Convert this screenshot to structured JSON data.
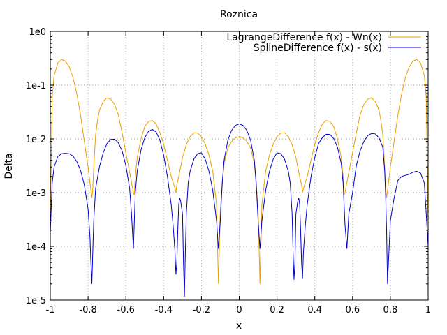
{
  "chart_data": {
    "type": "line",
    "title": "Roznica",
    "xlabel": "x",
    "ylabel": "Delta",
    "xlim": [
      -1,
      1
    ],
    "ylim": [
      1e-05,
      1
    ],
    "yscale": "log",
    "grid": true,
    "legend_position": "top-right",
    "x_ticks": [
      -1,
      -0.8,
      -0.6,
      -0.4,
      -0.2,
      0,
      0.2,
      0.4,
      0.6,
      0.8,
      1
    ],
    "x_tick_labels": [
      "-1",
      "-0.8",
      "-0.6",
      "-0.4",
      "-0.2",
      "0",
      "0.2",
      "0.4",
      "0.6",
      "0.8",
      "1"
    ],
    "y_ticks": [
      1e-05,
      0.0001,
      0.001,
      0.01,
      0.1,
      1
    ],
    "y_tick_labels": [
      "1e-5",
      "1e-4",
      "1e-3",
      "1e-2",
      "1e-1",
      "1e0"
    ],
    "series": [
      {
        "name": "LagrangeDifference f(x) - Wn(x)",
        "color": "#e8a000",
        "x": [
          -1.0,
          -0.99,
          -0.98,
          -0.96,
          -0.94,
          -0.92,
          -0.9,
          -0.88,
          -0.86,
          -0.84,
          -0.82,
          -0.8,
          -0.79,
          -0.78,
          -0.775,
          -0.77,
          -0.76,
          -0.75,
          -0.74,
          -0.72,
          -0.7,
          -0.68,
          -0.66,
          -0.64,
          -0.62,
          -0.6,
          -0.58,
          -0.56,
          -0.555,
          -0.55,
          -0.54,
          -0.52,
          -0.5,
          -0.48,
          -0.46,
          -0.44,
          -0.42,
          -0.4,
          -0.38,
          -0.36,
          -0.34,
          -0.335,
          -0.33,
          -0.32,
          -0.3,
          -0.28,
          -0.26,
          -0.24,
          -0.22,
          -0.2,
          -0.18,
          -0.16,
          -0.14,
          -0.12,
          -0.11,
          -0.1,
          -0.08,
          -0.06,
          -0.04,
          -0.02,
          0.0,
          0.02,
          0.04,
          0.06,
          0.08,
          0.1,
          0.11,
          0.12,
          0.14,
          0.16,
          0.18,
          0.2,
          0.22,
          0.24,
          0.26,
          0.28,
          0.3,
          0.32,
          0.33,
          0.335,
          0.34,
          0.36,
          0.38,
          0.4,
          0.42,
          0.44,
          0.46,
          0.48,
          0.5,
          0.52,
          0.54,
          0.55,
          0.555,
          0.56,
          0.58,
          0.6,
          0.62,
          0.64,
          0.66,
          0.68,
          0.7,
          0.72,
          0.74,
          0.75,
          0.76,
          0.77,
          0.775,
          0.78,
          0.79,
          0.8,
          0.82,
          0.84,
          0.86,
          0.88,
          0.9,
          0.92,
          0.94,
          0.96,
          0.98,
          0.99,
          1.0
        ],
        "values": [
          0.00025,
          0.06,
          0.15,
          0.26,
          0.3,
          0.28,
          0.22,
          0.14,
          0.07,
          0.028,
          0.009,
          0.003,
          0.0015,
          0.0008,
          0.0012,
          0.003,
          0.012,
          0.022,
          0.034,
          0.05,
          0.058,
          0.055,
          0.044,
          0.028,
          0.013,
          0.0055,
          0.0024,
          0.001,
          0.0009,
          0.002,
          0.0045,
          0.01,
          0.017,
          0.021,
          0.022,
          0.019,
          0.013,
          0.008,
          0.004,
          0.002,
          0.0012,
          0.001,
          0.0014,
          0.002,
          0.0045,
          0.0078,
          0.011,
          0.013,
          0.0128,
          0.011,
          0.008,
          0.005,
          0.0025,
          0.0006,
          2e-05,
          0.0005,
          0.0035,
          0.0068,
          0.009,
          0.0105,
          0.011,
          0.0105,
          0.009,
          0.0068,
          0.0035,
          0.0005,
          2e-05,
          0.0006,
          0.0025,
          0.005,
          0.008,
          0.011,
          0.0128,
          0.013,
          0.011,
          0.0078,
          0.0045,
          0.002,
          0.0014,
          0.001,
          0.0012,
          0.002,
          0.004,
          0.008,
          0.013,
          0.019,
          0.022,
          0.021,
          0.017,
          0.01,
          0.0045,
          0.002,
          0.0009,
          0.001,
          0.0024,
          0.0055,
          0.013,
          0.028,
          0.044,
          0.055,
          0.058,
          0.05,
          0.034,
          0.022,
          0.012,
          0.003,
          0.0012,
          0.0008,
          0.0015,
          0.003,
          0.009,
          0.028,
          0.07,
          0.14,
          0.22,
          0.28,
          0.3,
          0.26,
          0.15,
          0.06,
          0.00025
        ]
      },
      {
        "name": "SplineDifference f(x) - s(x)",
        "color": "#0000cc",
        "x": [
          -1.0,
          -0.99,
          -0.98,
          -0.96,
          -0.94,
          -0.92,
          -0.9,
          -0.88,
          -0.86,
          -0.84,
          -0.82,
          -0.8,
          -0.79,
          -0.785,
          -0.78,
          -0.775,
          -0.77,
          -0.76,
          -0.74,
          -0.72,
          -0.7,
          -0.68,
          -0.66,
          -0.64,
          -0.62,
          -0.6,
          -0.58,
          -0.57,
          -0.56,
          -0.555,
          -0.55,
          -0.54,
          -0.52,
          -0.5,
          -0.48,
          -0.46,
          -0.44,
          -0.42,
          -0.4,
          -0.38,
          -0.36,
          -0.35,
          -0.34,
          -0.335,
          -0.33,
          -0.325,
          -0.32,
          -0.315,
          -0.31,
          -0.3,
          -0.295,
          -0.29,
          -0.285,
          -0.28,
          -0.27,
          -0.26,
          -0.24,
          -0.22,
          -0.2,
          -0.18,
          -0.16,
          -0.14,
          -0.12,
          -0.11,
          -0.1,
          -0.09,
          -0.08,
          -0.06,
          -0.04,
          -0.02,
          0.0,
          0.02,
          0.04,
          0.06,
          0.08,
          0.09,
          0.1,
          0.11,
          0.12,
          0.14,
          0.16,
          0.18,
          0.2,
          0.22,
          0.24,
          0.26,
          0.27,
          0.28,
          0.285,
          0.29,
          0.295,
          0.3,
          0.31,
          0.315,
          0.32,
          0.325,
          0.33,
          0.335,
          0.34,
          0.35,
          0.36,
          0.38,
          0.4,
          0.42,
          0.44,
          0.46,
          0.48,
          0.5,
          0.52,
          0.54,
          0.55,
          0.555,
          0.56,
          0.57,
          0.58,
          0.6,
          0.62,
          0.64,
          0.66,
          0.68,
          0.7,
          0.72,
          0.74,
          0.76,
          0.77,
          0.775,
          0.78,
          0.785,
          0.79,
          0.8,
          0.82,
          0.84,
          0.86,
          0.88,
          0.9,
          0.92,
          0.94,
          0.96,
          0.98,
          0.99,
          1.0
        ],
        "values": [
          0.00018,
          0.0015,
          0.003,
          0.0047,
          0.0053,
          0.0054,
          0.0053,
          0.0048,
          0.0038,
          0.0026,
          0.0014,
          0.0005,
          0.00015,
          5e-05,
          2e-05,
          8e-05,
          0.0003,
          0.0012,
          0.003,
          0.0055,
          0.0082,
          0.0098,
          0.0099,
          0.0085,
          0.006,
          0.0032,
          0.0012,
          0.0004,
          9e-05,
          0.0003,
          0.001,
          0.0025,
          0.0062,
          0.0105,
          0.0138,
          0.015,
          0.0135,
          0.0095,
          0.005,
          0.002,
          0.0006,
          0.00025,
          8e-05,
          3e-05,
          5e-05,
          0.0002,
          0.0006,
          0.0008,
          0.0007,
          0.0004,
          5e-05,
          1.15e-05,
          8e-05,
          0.0004,
          0.0015,
          0.0025,
          0.0042,
          0.0053,
          0.0055,
          0.0042,
          0.0025,
          0.0011,
          0.0003,
          9e-05,
          0.0003,
          0.0015,
          0.004,
          0.0095,
          0.0145,
          0.0178,
          0.019,
          0.0178,
          0.0145,
          0.0095,
          0.004,
          0.0015,
          0.0003,
          9e-05,
          0.0003,
          0.0011,
          0.0025,
          0.0042,
          0.0055,
          0.0053,
          0.0042,
          0.0025,
          0.0015,
          0.0004,
          8e-05,
          2.4e-05,
          5e-05,
          0.0004,
          0.0007,
          0.0008,
          0.0006,
          0.0002,
          5e-05,
          2.5e-05,
          8e-05,
          0.00025,
          0.0006,
          0.002,
          0.0045,
          0.0082,
          0.0105,
          0.0122,
          0.0121,
          0.0102,
          0.007,
          0.0035,
          0.0015,
          0.0006,
          0.00025,
          9e-05,
          0.0004,
          0.001,
          0.0032,
          0.006,
          0.009,
          0.0115,
          0.0126,
          0.0124,
          0.0105,
          0.007,
          0.0025,
          0.0009,
          0.0002,
          2e-05,
          5e-05,
          0.0003,
          0.0008,
          0.0017,
          0.002,
          0.0021,
          0.0022,
          0.0024,
          0.0025,
          0.0023,
          0.0015,
          0.0004,
          0.0001
        ]
      }
    ]
  }
}
